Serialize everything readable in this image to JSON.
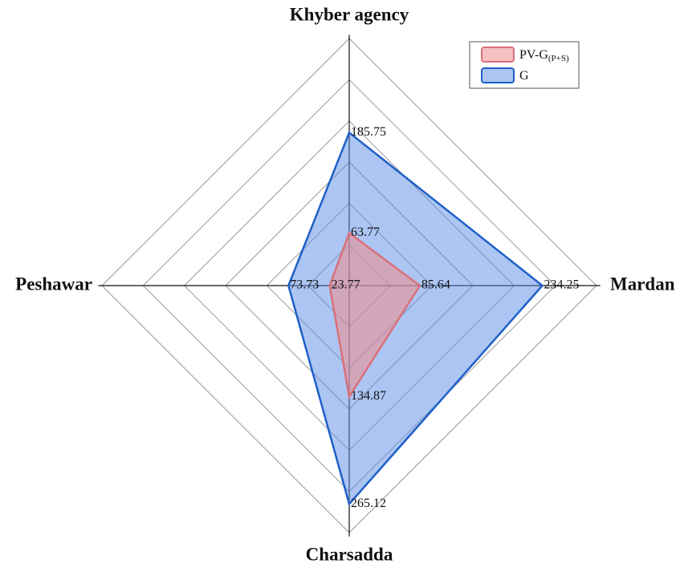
{
  "chart_data": {
    "type": "radar",
    "categories": [
      "Khyber agency",
      "Mardan",
      "Charsadda",
      "Peshawar"
    ],
    "rlim": [
      0,
      300
    ],
    "rticks": [
      50,
      100,
      150,
      200,
      250,
      300
    ],
    "grid": true,
    "legend": "top-right",
    "series": [
      {
        "name": "G",
        "color": "#1f5fc9",
        "fill": "rgba(90,140,230,0.5)",
        "values": [
          185.75,
          234.25,
          265.12,
          73.73
        ]
      },
      {
        "name": "PV-G",
        "name_subscript": "(P+S)",
        "color": "#d9707a",
        "fill": "rgba(240,140,140,0.55)",
        "values": [
          63.77,
          85.64,
          134.87,
          23.77
        ]
      }
    ]
  }
}
